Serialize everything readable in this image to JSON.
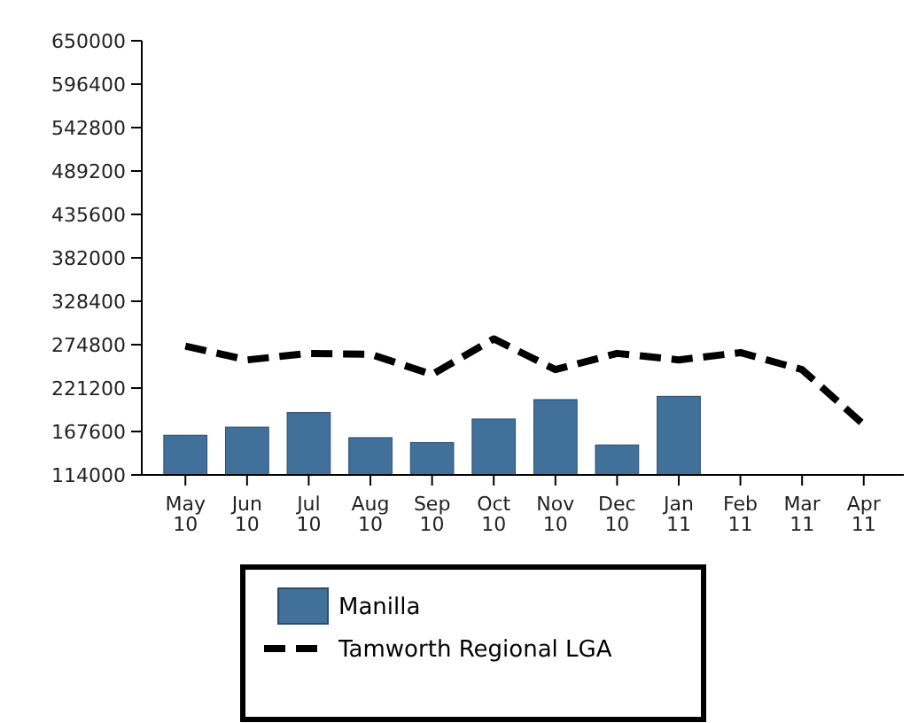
{
  "chart_data": {
    "type": "bar",
    "categories": [
      "May\n10",
      "Jun\n10",
      "Jul\n10",
      "Aug\n10",
      "Sep\n10",
      "Oct\n10",
      "Nov\n10",
      "Dec\n10",
      "Jan\n11",
      "Feb\n11",
      "Mar\n11",
      "Apr\n11"
    ],
    "series": [
      {
        "name": "Manilla",
        "color": "#41709a",
        "values": [
          163000,
          173000,
          191000,
          160000,
          154000,
          183000,
          207000,
          151000,
          211000,
          null,
          null,
          null
        ]
      },
      {
        "name": "Tamworth Regional LGA",
        "type": "line",
        "color": "#000000",
        "line_style": "dashed",
        "values": [
          273000,
          256000,
          264000,
          263000,
          238000,
          282000,
          244000,
          264000,
          256000,
          265000,
          244000,
          176000
        ]
      }
    ],
    "ylim": [
      114000,
      650000
    ],
    "yticks": [
      114000,
      167600,
      221200,
      274800,
      328400,
      382000,
      435600,
      489200,
      542800,
      596400,
      650000
    ],
    "grid": false,
    "legend": "bottom"
  }
}
